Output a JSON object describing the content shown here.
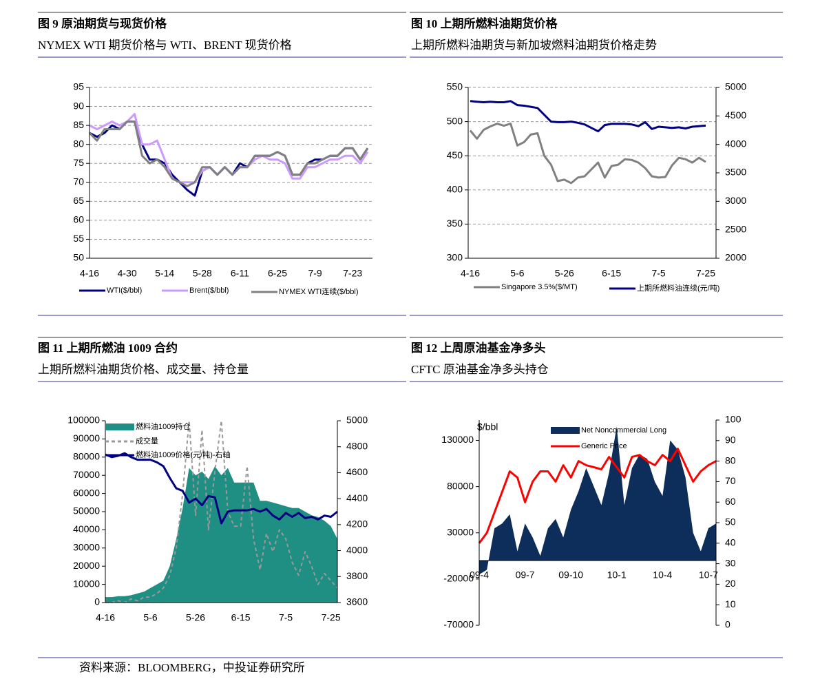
{
  "chart_data": [
    {
      "type": "line",
      "title": "图 9  原油期货与现货价格",
      "subtitle": "NYMEX WTI 期货价格与 WTI、BRENT 现货价格",
      "categories": [
        "4-16",
        null,
        null,
        null,
        null,
        "4-30",
        null,
        null,
        null,
        null,
        "5-14",
        null,
        null,
        null,
        null,
        "5-28",
        null,
        null,
        null,
        null,
        "6-11",
        null,
        null,
        null,
        null,
        "6-25",
        null,
        null,
        null,
        null,
        "7-9",
        null,
        null,
        null,
        null,
        "7-23",
        null,
        null
      ],
      "ylim": [
        50,
        95
      ],
      "yticks": [
        50,
        55,
        60,
        65,
        70,
        75,
        80,
        85,
        90,
        95
      ],
      "grid": true,
      "legend": "bottom",
      "series": [
        {
          "name": "WTI($/bbl)",
          "color": "#000080",
          "values": [
            83,
            82,
            83,
            85,
            84,
            86,
            86,
            80,
            76,
            76,
            75,
            72,
            70,
            68,
            66.5,
            73,
            74,
            72,
            74,
            72,
            75,
            74,
            77,
            77,
            77,
            78,
            77,
            72,
            72,
            75,
            76,
            76,
            77,
            77,
            79,
            79,
            76,
            79
          ]
        },
        {
          "name": "Brent($/bbl)",
          "color": "#cc99ff",
          "values": [
            85,
            84,
            85,
            86,
            85,
            86,
            88,
            80,
            80,
            81,
            76,
            71,
            70,
            70,
            70,
            73,
            74,
            72,
            74,
            72,
            74,
            74,
            76,
            77,
            76,
            76,
            75,
            71,
            71,
            74,
            74,
            75,
            76,
            76,
            77,
            77,
            75,
            78
          ]
        },
        {
          "name": "NYMEX WTI连续($/bbl)",
          "color": "#808080",
          "values": [
            83,
            81,
            84,
            84,
            84,
            86,
            86,
            77,
            75,
            76,
            74,
            71,
            70,
            69,
            70,
            74,
            74,
            72,
            74,
            72,
            74,
            74,
            77,
            77,
            77,
            78,
            77,
            72,
            72,
            75,
            75,
            76,
            77,
            77,
            79,
            79,
            76,
            79
          ]
        }
      ]
    },
    {
      "type": "line",
      "title": "图 10  上期所燃料油期货价格",
      "subtitle": "上期所燃料油期货与新加坡燃料油期货价格走势",
      "categories": [
        "4-16",
        null,
        null,
        null,
        null,
        null,
        null,
        "5-6",
        null,
        null,
        null,
        null,
        null,
        null,
        "5-26",
        null,
        null,
        null,
        null,
        null,
        null,
        "6-15",
        null,
        null,
        null,
        null,
        null,
        null,
        "7-5",
        null,
        null,
        null,
        null,
        null,
        null,
        "7-25"
      ],
      "ylim": [
        300,
        550
      ],
      "yticks": [
        300,
        350,
        400,
        450,
        500,
        550
      ],
      "y2lim": [
        2000,
        5000
      ],
      "y2ticks": [
        2000,
        2500,
        3000,
        3500,
        4000,
        4500,
        5000
      ],
      "grid": true,
      "legend": "bottom",
      "series": [
        {
          "name": "Singapore 3.5%($/MT)",
          "color": "#808080",
          "values": [
            487,
            475,
            488,
            493,
            497,
            494,
            497,
            465,
            470,
            481,
            483,
            450,
            437,
            413,
            415,
            410,
            418,
            420,
            430,
            440,
            418,
            435,
            437,
            445,
            444,
            440,
            432,
            420,
            418,
            419,
            436,
            447,
            445,
            440,
            447,
            441
          ]
        },
        {
          "name": "上期所燃料油连续(元/吨)",
          "color": "#000080",
          "axis": "y2",
          "values": [
            4760,
            4750,
            4740,
            4750,
            4740,
            4740,
            4760,
            4690,
            4680,
            4660,
            4640,
            4520,
            4400,
            4390,
            4390,
            4400,
            4380,
            4350,
            4290,
            4230,
            4340,
            4360,
            4360,
            4360,
            4350,
            4320,
            4390,
            4270,
            4310,
            4300,
            4290,
            4300,
            4280,
            4310,
            4320,
            4330
          ]
        }
      ]
    },
    {
      "type": "line",
      "title": "图 11  上期所燃油 1009 合约",
      "subtitle": "上期所燃料油期货价格、成交量、持仓量",
      "categories": [
        "4-16",
        null,
        null,
        null,
        null,
        null,
        null,
        "5-6",
        null,
        null,
        null,
        null,
        null,
        null,
        "5-26",
        null,
        null,
        null,
        null,
        null,
        null,
        "6-15",
        null,
        null,
        null,
        null,
        null,
        null,
        "7-5",
        null,
        null,
        null,
        null,
        null,
        null,
        "7-25",
        null
      ],
      "ylim": [
        0,
        100000
      ],
      "yticks": [
        0,
        10000,
        20000,
        30000,
        40000,
        50000,
        60000,
        70000,
        80000,
        90000,
        100000
      ],
      "y2lim": [
        3600,
        5000
      ],
      "y2ticks": [
        3600,
        3800,
        4000,
        4200,
        4400,
        4600,
        4800,
        5000
      ],
      "grid": false,
      "legend": "top-left",
      "series": [
        {
          "name": "燃料油1009持仓",
          "color": "#1f8f84",
          "style": "area",
          "values": [
            3000,
            3000,
            3500,
            3500,
            4000,
            5000,
            6000,
            8000,
            10000,
            12000,
            20000,
            35000,
            52000,
            74000,
            70000,
            72000,
            68000,
            75000,
            70000,
            74000,
            66000,
            66000,
            66000,
            66000,
            56000,
            56000,
            55000,
            54000,
            53000,
            52000,
            52000,
            50000,
            48000,
            47000,
            45000,
            42000,
            35000
          ]
        },
        {
          "name": "成交量",
          "color": "#999999",
          "style": "dashed",
          "values": [
            0,
            0,
            1000,
            0,
            2000,
            1000,
            3000,
            3000,
            5000,
            8000,
            15000,
            30000,
            60000,
            100000,
            48000,
            95000,
            40000,
            72000,
            100000,
            50000,
            42000,
            42000,
            75000,
            35000,
            18000,
            38000,
            28000,
            40000,
            35000,
            22000,
            15000,
            28000,
            20000,
            10000,
            16000,
            12000,
            8000
          ]
        },
        {
          "name": "燃料油1009价格(元/吨)-右轴",
          "color": "#000080",
          "axis": "y2",
          "values": [
            4740,
            4720,
            4730,
            4750,
            4720,
            4700,
            4700,
            4700,
            4680,
            4650,
            4560,
            4480,
            4460,
            4370,
            4400,
            4350,
            4420,
            4410,
            4210,
            4300,
            4310,
            4310,
            4310,
            4320,
            4300,
            4320,
            4270,
            4240,
            4290,
            4260,
            4290,
            4250,
            4260,
            4240,
            4270,
            4260,
            4300
          ]
        }
      ]
    },
    {
      "type": "line",
      "title": "图 12  上周原油基金净多头",
      "subtitle": "CFTC  原油基金净多头持仓",
      "y_label": "$/bbl",
      "categories": [
        "09-4",
        null,
        null,
        null,
        null,
        null,
        "09-7",
        null,
        null,
        null,
        null,
        null,
        "09-10",
        null,
        null,
        null,
        null,
        null,
        "10-1",
        null,
        null,
        null,
        null,
        null,
        "10-4",
        null,
        null,
        null,
        null,
        null,
        "10-7",
        null
      ],
      "ylim": [
        -70000,
        152000
      ],
      "yticks": [
        -70000,
        -20000,
        30000,
        80000,
        130000
      ],
      "y2lim": [
        0,
        100
      ],
      "y2ticks": [
        0,
        10,
        20,
        30,
        40,
        50,
        60,
        70,
        80,
        90,
        100
      ],
      "grid": false,
      "legend": "top",
      "series": [
        {
          "name": "Net Noncommercial Long",
          "color": "#0d2d5a",
          "style": "area",
          "values": [
            -15000,
            -10000,
            35000,
            40000,
            50000,
            10000,
            40000,
            25000,
            5000,
            35000,
            45000,
            25000,
            55000,
            75000,
            100000,
            80000,
            60000,
            95000,
            145000,
            60000,
            100000,
            115000,
            110000,
            85000,
            70000,
            130000,
            120000,
            90000,
            30000,
            10000,
            35000,
            40000
          ]
        },
        {
          "name": "Generic Price",
          "color": "#ff0000",
          "axis": "y2",
          "values": [
            40,
            45,
            55,
            65,
            75,
            72,
            60,
            70,
            75,
            75,
            70,
            78,
            72,
            80,
            78,
            77,
            76,
            82,
            77,
            72,
            82,
            83,
            80,
            78,
            83,
            80,
            86,
            78,
            70,
            75,
            78,
            80
          ]
        }
      ]
    }
  ],
  "source": "资料来源：BLOOMBERG，中投证券研究所"
}
